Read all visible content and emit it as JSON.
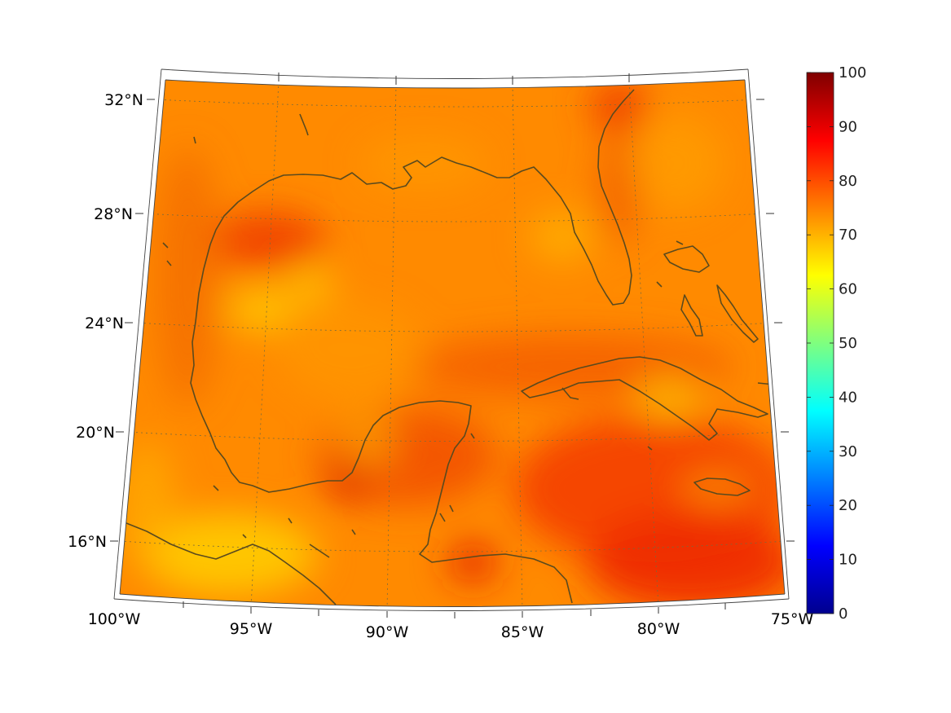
{
  "map": {
    "region": "Gulf of Mexico and Caribbean",
    "projection": "conic",
    "lon_range": [
      -100,
      -75
    ],
    "lat_range": [
      14,
      33
    ],
    "lat_labels": [
      "32°N",
      "28°N",
      "24°N",
      "20°N",
      "16°N"
    ],
    "lon_labels": [
      "100°W",
      "95°W",
      "90°W",
      "85°W",
      "80°W",
      "75°W"
    ],
    "grid": "dotted",
    "coastline_color": "#5a4a1e"
  },
  "colorbar": {
    "colormap": "jet",
    "range": [
      0,
      100
    ],
    "tick_labels": [
      "100",
      "90",
      "80",
      "70",
      "60",
      "50",
      "40",
      "30",
      "20",
      "10",
      "0"
    ],
    "placement": "right"
  },
  "field": {
    "dominant_range": [
      62,
      88
    ],
    "background_value": 75
  }
}
